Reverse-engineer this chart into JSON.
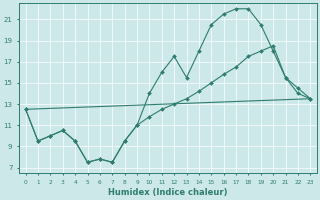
{
  "xlabel": "Humidex (Indice chaleur)",
  "bg_color": "#cce8e8",
  "grid_color": "#ffffff",
  "line_color": "#2e7d6e",
  "xlim": [
    -0.5,
    23.5
  ],
  "ylim": [
    6.5,
    22.5
  ],
  "xticks": [
    0,
    1,
    2,
    3,
    4,
    5,
    6,
    7,
    8,
    9,
    10,
    11,
    12,
    13,
    14,
    15,
    16,
    17,
    18,
    19,
    20,
    21,
    22,
    23
  ],
  "yticks": [
    7,
    9,
    11,
    13,
    15,
    17,
    19,
    21
  ],
  "line1_x": [
    0,
    1,
    2,
    3,
    4,
    5,
    6,
    7,
    8,
    9,
    10,
    11,
    12,
    13,
    14,
    15,
    16,
    17,
    18,
    19,
    20,
    21,
    22,
    23
  ],
  "line1_y": [
    12.5,
    9.5,
    10.0,
    10.5,
    9.5,
    7.5,
    7.8,
    7.5,
    9.5,
    11.0,
    14.0,
    16.0,
    17.5,
    15.5,
    18.0,
    20.5,
    21.5,
    22.0,
    22.0,
    20.5,
    18.0,
    15.5,
    14.0,
    13.5
  ],
  "line2_x": [
    0,
    23
  ],
  "line2_y": [
    12.5,
    13.5
  ],
  "line3_x": [
    0,
    1,
    2,
    3,
    4,
    5,
    6,
    7,
    8,
    9,
    10,
    11,
    12,
    13,
    14,
    15,
    16,
    17,
    18,
    19,
    20,
    21,
    22,
    23
  ],
  "line3_y": [
    12.5,
    9.5,
    10.0,
    10.5,
    9.5,
    7.5,
    7.8,
    7.5,
    9.5,
    11.0,
    11.8,
    12.5,
    13.0,
    13.5,
    14.2,
    15.0,
    15.8,
    16.5,
    17.5,
    18.0,
    18.5,
    15.5,
    14.5,
    13.5
  ]
}
